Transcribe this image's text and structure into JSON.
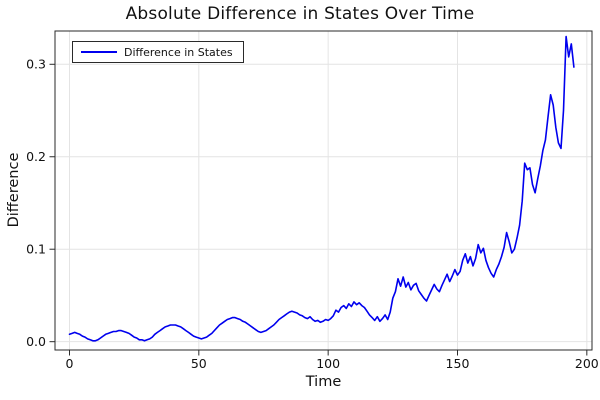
{
  "chart_data": {
    "type": "line",
    "title": "Absolute Difference in States Over Time",
    "xlabel": "Time",
    "ylabel": "Difference",
    "grid": true,
    "legend": {
      "position": "top-left",
      "entries": [
        {
          "label": "Difference in States",
          "color": "#0000ee"
        }
      ]
    },
    "x_ticks": [
      0,
      50,
      100,
      150,
      200
    ],
    "x_tick_labels": [
      "0",
      "50",
      "100",
      "150",
      "200"
    ],
    "y_ticks": [
      0.0,
      0.1,
      0.2,
      0.3
    ],
    "y_tick_labels": [
      "0.0",
      "0.1",
      "0.2",
      "0.3"
    ],
    "xlim": [
      -5.6,
      202
    ],
    "ylim": [
      -0.009,
      0.336
    ],
    "colors": {
      "line": "#0000ee",
      "grid": "#e4e4e4",
      "frame": "#2a2a2a",
      "text": "#111111",
      "background": "#ffffff"
    },
    "series": [
      {
        "name": "Difference in States",
        "x_start": 0,
        "x_step": 1,
        "y": [
          0.008,
          0.009,
          0.01,
          0.009,
          0.008,
          0.006,
          0.005,
          0.003,
          0.002,
          0.001,
          0.001,
          0.002,
          0.004,
          0.006,
          0.008,
          0.009,
          0.01,
          0.011,
          0.011,
          0.012,
          0.012,
          0.011,
          0.01,
          0.009,
          0.007,
          0.005,
          0.004,
          0.002,
          0.002,
          0.001,
          0.002,
          0.003,
          0.005,
          0.008,
          0.01,
          0.012,
          0.014,
          0.016,
          0.017,
          0.018,
          0.018,
          0.018,
          0.017,
          0.016,
          0.014,
          0.012,
          0.01,
          0.008,
          0.006,
          0.005,
          0.004,
          0.003,
          0.004,
          0.005,
          0.007,
          0.009,
          0.012,
          0.015,
          0.018,
          0.02,
          0.022,
          0.024,
          0.025,
          0.026,
          0.026,
          0.025,
          0.024,
          0.022,
          0.021,
          0.019,
          0.017,
          0.015,
          0.013,
          0.011,
          0.01,
          0.011,
          0.012,
          0.014,
          0.016,
          0.018,
          0.021,
          0.024,
          0.026,
          0.028,
          0.03,
          0.032,
          0.033,
          0.032,
          0.031,
          0.029,
          0.028,
          0.026,
          0.025,
          0.027,
          0.024,
          0.022,
          0.023,
          0.021,
          0.022,
          0.024,
          0.023,
          0.025,
          0.028,
          0.034,
          0.032,
          0.037,
          0.039,
          0.036,
          0.041,
          0.038,
          0.043,
          0.04,
          0.042,
          0.039,
          0.037,
          0.033,
          0.029,
          0.026,
          0.023,
          0.027,
          0.022,
          0.025,
          0.029,
          0.024,
          0.032,
          0.047,
          0.054,
          0.068,
          0.06,
          0.07,
          0.059,
          0.064,
          0.056,
          0.061,
          0.063,
          0.055,
          0.051,
          0.047,
          0.044,
          0.05,
          0.056,
          0.062,
          0.057,
          0.054,
          0.061,
          0.067,
          0.073,
          0.065,
          0.071,
          0.078,
          0.072,
          0.076,
          0.088,
          0.095,
          0.085,
          0.092,
          0.082,
          0.09,
          0.105,
          0.096,
          0.101,
          0.088,
          0.08,
          0.074,
          0.07,
          0.078,
          0.084,
          0.092,
          0.102,
          0.118,
          0.108,
          0.096,
          0.1,
          0.112,
          0.126,
          0.152,
          0.193,
          0.186,
          0.188,
          0.17,
          0.161,
          0.176,
          0.19,
          0.207,
          0.218,
          0.243,
          0.267,
          0.256,
          0.232,
          0.215,
          0.209,
          0.25,
          0.33,
          0.308,
          0.322,
          0.297
        ]
      }
    ]
  }
}
